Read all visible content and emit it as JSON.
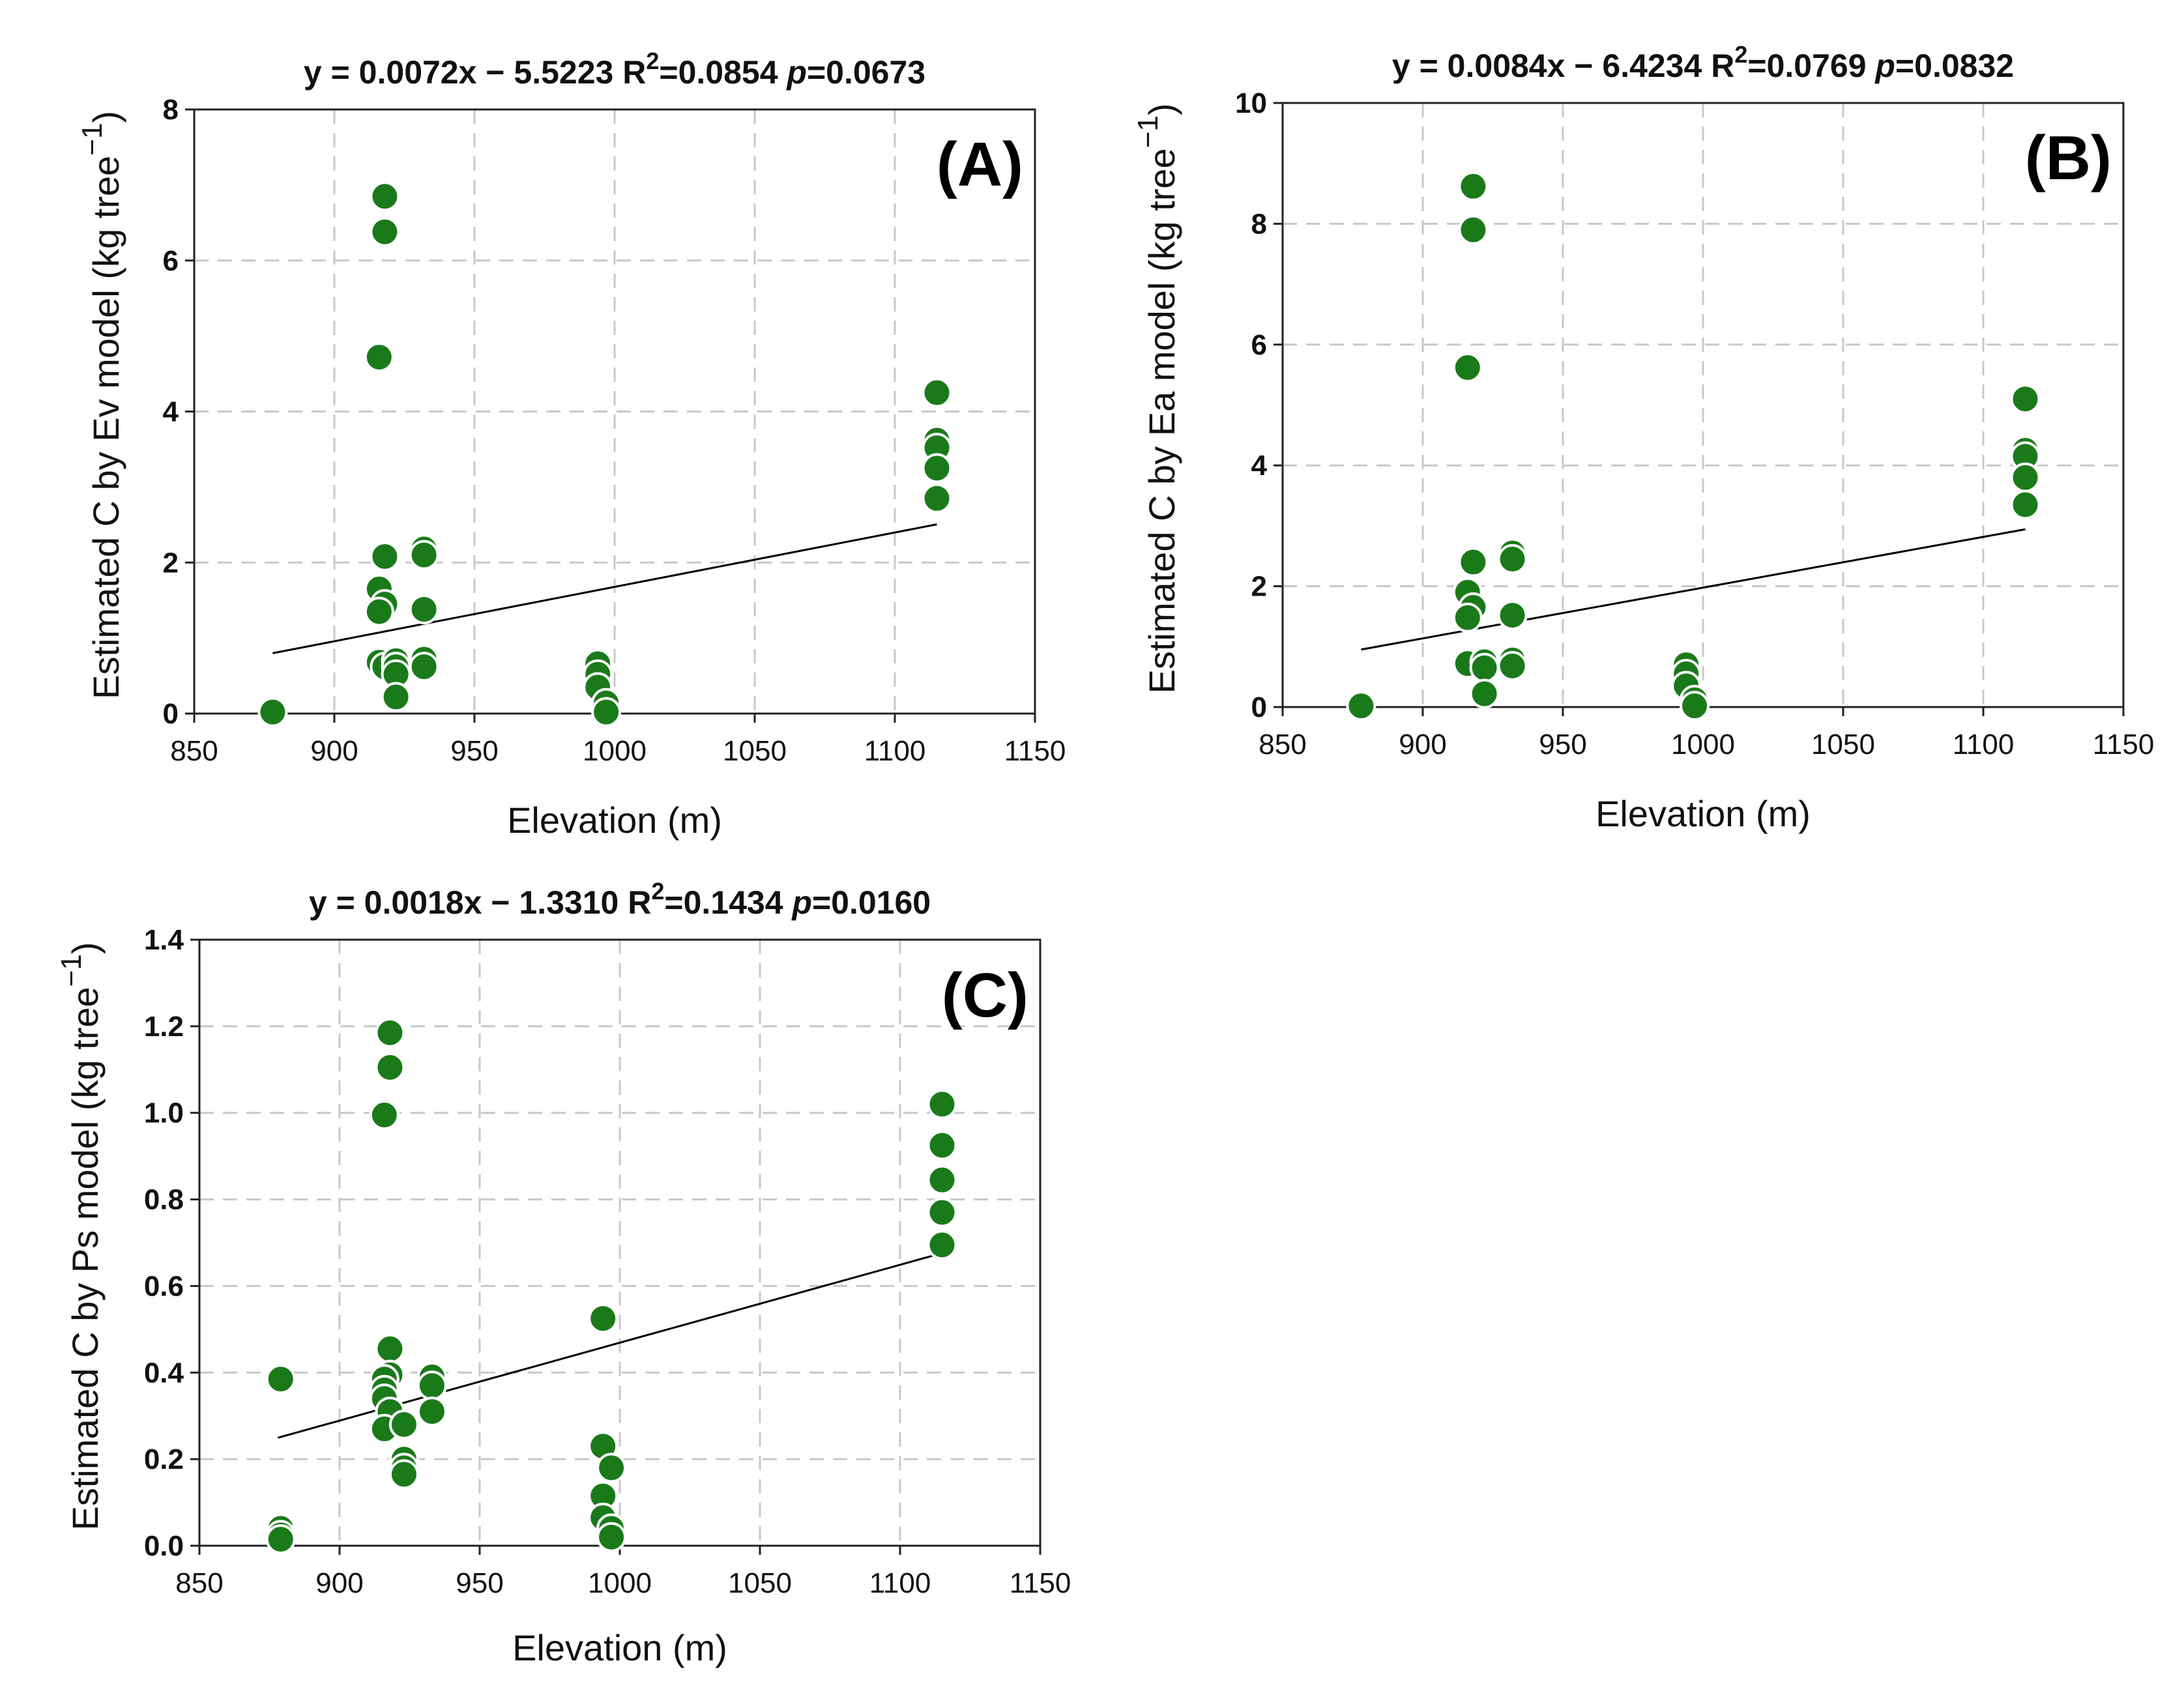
{
  "chart_data": [
    {
      "id": "A",
      "type": "scatter",
      "panel_label": "(A)",
      "title_parts": {
        "eq": "y = 0.0072x − 5.5223 R",
        "sup": "2",
        "r2": "=0.0854 ",
        "p_label": "p",
        "p_value": "=0.0673"
      },
      "xlabel": "Elevation (m)",
      "ylabel": "Estimated C by Ev model (kg tree",
      "ylabel_sup": "−1",
      "ylabel_close": ")",
      "xlim": [
        850,
        1150
      ],
      "ylim": [
        0,
        8
      ],
      "xticks": [
        850,
        900,
        950,
        1000,
        1050,
        1100,
        1150
      ],
      "yticks": [
        0,
        2,
        4,
        6,
        8
      ],
      "ytick_labels": [
        "0",
        "2",
        "4",
        "6",
        "8"
      ],
      "regression": {
        "slope": 0.0072,
        "intercept": -5.5223,
        "x_range": [
          878,
          1115
        ]
      },
      "points": [
        [
          878,
          0.02
        ],
        [
          918,
          6.85
        ],
        [
          918,
          6.38
        ],
        [
          916,
          4.72
        ],
        [
          918,
          2.08
        ],
        [
          916,
          1.65
        ],
        [
          918,
          1.45
        ],
        [
          916,
          1.35
        ],
        [
          916,
          0.68
        ],
        [
          918,
          0.62
        ],
        [
          922,
          0.7
        ],
        [
          922,
          0.62
        ],
        [
          922,
          0.52
        ],
        [
          922,
          0.22
        ],
        [
          932,
          2.18
        ],
        [
          932,
          2.1
        ],
        [
          932,
          1.38
        ],
        [
          932,
          0.72
        ],
        [
          932,
          0.62
        ],
        [
          994,
          0.66
        ],
        [
          994,
          0.52
        ],
        [
          994,
          0.35
        ],
        [
          997,
          0.14
        ],
        [
          997,
          0.02
        ],
        [
          1115,
          4.25
        ],
        [
          1115,
          3.62
        ],
        [
          1115,
          3.52
        ],
        [
          1115,
          3.25
        ],
        [
          1115,
          2.85
        ]
      ]
    },
    {
      "id": "B",
      "type": "scatter",
      "panel_label": "(B)",
      "title_parts": {
        "eq": "y = 0.0084x − 6.4234 R",
        "sup": "2",
        "r2": "=0.0769 ",
        "p_label": "p",
        "p_value": "=0.0832"
      },
      "xlabel": "Elevation (m)",
      "ylabel": "Estimated C by Ea model (kg tree",
      "ylabel_sup": "−1",
      "ylabel_close": ")",
      "xlim": [
        850,
        1150
      ],
      "ylim": [
        0,
        10
      ],
      "xticks": [
        850,
        900,
        950,
        1000,
        1050,
        1100,
        1150
      ],
      "yticks": [
        0,
        2,
        4,
        6,
        8,
        10
      ],
      "ytick_labels": [
        "0",
        "2",
        "4",
        "6",
        "8",
        "10"
      ],
      "regression": {
        "slope": 0.0084,
        "intercept": -6.4234,
        "x_range": [
          878,
          1115
        ]
      },
      "points": [
        [
          878,
          0.02
        ],
        [
          918,
          8.62
        ],
        [
          918,
          7.9
        ],
        [
          916,
          5.62
        ],
        [
          918,
          2.4
        ],
        [
          916,
          1.9
        ],
        [
          918,
          1.65
        ],
        [
          916,
          1.48
        ],
        [
          916,
          0.72
        ],
        [
          922,
          0.75
        ],
        [
          922,
          0.65
        ],
        [
          922,
          0.22
        ],
        [
          932,
          2.55
        ],
        [
          932,
          2.45
        ],
        [
          932,
          1.52
        ],
        [
          932,
          0.78
        ],
        [
          932,
          0.68
        ],
        [
          994,
          0.7
        ],
        [
          994,
          0.55
        ],
        [
          994,
          0.35
        ],
        [
          997,
          0.12
        ],
        [
          997,
          0.02
        ],
        [
          1115,
          5.1
        ],
        [
          1115,
          4.25
        ],
        [
          1115,
          4.15
        ],
        [
          1115,
          3.8
        ],
        [
          1115,
          3.35
        ]
      ]
    },
    {
      "id": "C",
      "type": "scatter",
      "panel_label": "(C)",
      "title_parts": {
        "eq": "y = 0.0018x − 1.3310 R",
        "sup": "2",
        "r2": "=0.1434 ",
        "p_label": "p",
        "p_value": "=0.0160"
      },
      "xlabel": "Elevation (m)",
      "ylabel": "Estimated C by Ps model (kg tree",
      "ylabel_sup": "−1",
      "ylabel_close": ")",
      "xlim": [
        850,
        1150
      ],
      "ylim": [
        0,
        1.4
      ],
      "xticks": [
        850,
        900,
        950,
        1000,
        1050,
        1100,
        1150
      ],
      "yticks": [
        0,
        0.2,
        0.4,
        0.6,
        0.8,
        1.0,
        1.2,
        1.4
      ],
      "ytick_labels": [
        "0.0",
        "0.2",
        "0.4",
        "0.6",
        "0.8",
        "1.0",
        "1.2",
        "1.4"
      ],
      "regression": {
        "slope": 0.0018,
        "intercept": -1.331,
        "x_range": [
          878,
          1115
        ]
      },
      "points": [
        [
          879,
          0.385
        ],
        [
          879,
          0.04
        ],
        [
          879,
          0.025
        ],
        [
          879,
          0.015
        ],
        [
          918,
          1.185
        ],
        [
          918,
          1.105
        ],
        [
          916,
          0.995
        ],
        [
          918,
          0.455
        ],
        [
          918,
          0.395
        ],
        [
          916,
          0.385
        ],
        [
          916,
          0.36
        ],
        [
          916,
          0.34
        ],
        [
          918,
          0.31
        ],
        [
          916,
          0.27
        ],
        [
          923,
          0.28
        ],
        [
          923,
          0.2
        ],
        [
          923,
          0.18
        ],
        [
          923,
          0.165
        ],
        [
          933,
          0.39
        ],
        [
          933,
          0.37
        ],
        [
          933,
          0.31
        ],
        [
          994,
          0.525
        ],
        [
          994,
          0.23
        ],
        [
          994,
          0.115
        ],
        [
          994,
          0.065
        ],
        [
          997,
          0.18
        ],
        [
          997,
          0.04
        ],
        [
          997,
          0.02
        ],
        [
          1115,
          1.02
        ],
        [
          1115,
          0.925
        ],
        [
          1115,
          0.845
        ],
        [
          1115,
          0.77
        ],
        [
          1115,
          0.695
        ]
      ]
    }
  ]
}
